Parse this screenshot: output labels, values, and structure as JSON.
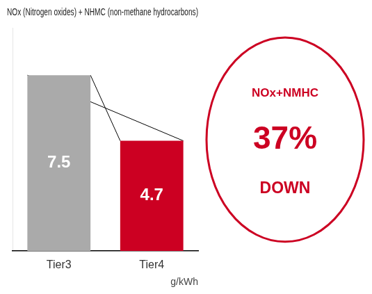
{
  "chart_data": {
    "type": "bar",
    "title": "NOx (Nitrogen oxides) + NHMC (non-methane hydrocarbons)",
    "categories": [
      "Tier3",
      "Tier4"
    ],
    "values": [
      7.5,
      4.7
    ],
    "colors": [
      "#aaaaaa",
      "#cc0022"
    ],
    "data_labels": true,
    "xlabel": "g/kWh",
    "ylim": [
      0,
      9.5
    ],
    "grid": false,
    "tick_labels": "x",
    "annotations": [
      "NOx+NMHC",
      "37%",
      "DOWN"
    ]
  }
}
